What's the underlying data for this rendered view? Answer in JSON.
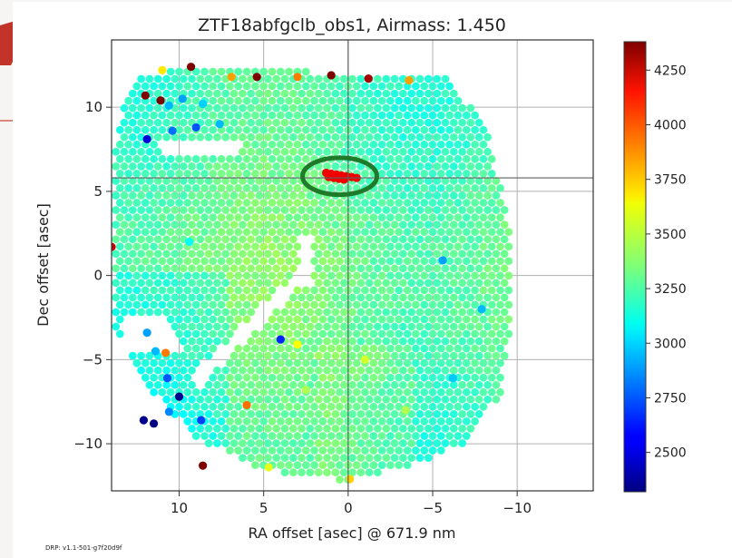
{
  "colors": {
    "slide_accent": "#c2342a",
    "slide_rule": "#d98a7c",
    "axes": "#333333",
    "grid": "#b0b0b0",
    "crosshair": "#5f5f5f",
    "highlight_ring": "#1f7a2a",
    "figure_bg": "#ffffff"
  },
  "footer": {
    "drp_version": "DRP: v1.1-501-g7f20d9f"
  },
  "chart_data": {
    "type": "scatter",
    "title": "ZTF18abfgclb_obs1, Airmass: 1.450",
    "xlabel": "RA offset [asec] @  671.9 nm",
    "ylabel": "Dec offset [asec]",
    "x_reversed": true,
    "xlim": [
      14,
      -14.5
    ],
    "ylim": [
      -12.8,
      14
    ],
    "xticks": [
      10,
      5,
      0,
      -5,
      -10
    ],
    "yticks": [
      10,
      5,
      0,
      -5,
      -10
    ],
    "xtick_labels": [
      "10",
      "5",
      "0",
      "−5",
      "−10"
    ],
    "ytick_labels": [
      "10",
      "5",
      "0",
      "−5",
      "−10"
    ],
    "grid": true,
    "crosshair": {
      "x": 0,
      "y": 5.8
    },
    "colorbar": {
      "colormap": "jet",
      "min": 2320,
      "max": 4380,
      "ticks": [
        2500,
        2750,
        3000,
        3250,
        3500,
        3750,
        4000,
        4250
      ],
      "tick_labels": [
        "2500",
        "2750",
        "3000",
        "3250",
        "3500",
        "3750",
        "4000",
        "4250"
      ]
    },
    "footprint": {
      "description_values": "hexagonal grid of spaxels, spacing ~0.5 asec",
      "spacing": 0.5,
      "outline_vertices": [
        [
          12.5,
          12.0
        ],
        [
          7,
          12.4
        ],
        [
          0,
          12.0
        ],
        [
          -6,
          11.7
        ],
        [
          -8.3,
          8.5
        ],
        [
          -9.7,
          2
        ],
        [
          -9.7,
          -3
        ],
        [
          -9,
          -7
        ],
        [
          -7,
          -10
        ],
        [
          -4,
          -11.2
        ],
        [
          0,
          -12.2
        ],
        [
          5,
          -11.6
        ],
        [
          9,
          -9.6
        ],
        [
          12.5,
          -6
        ],
        [
          13.8,
          -3
        ],
        [
          13.8,
          8
        ],
        [
          13,
          11
        ]
      ],
      "gaps": [
        {
          "polygon": [
            [
              11.2,
              8.2
            ],
            [
              6.5,
              8.2
            ],
            [
              6.5,
              7.2
            ],
            [
              11.2,
              7.2
            ]
          ]
        },
        {
          "polygon": [
            [
              13.5,
              -2.5
            ],
            [
              11,
              -2.5
            ],
            [
              9.5,
              -4.5
            ],
            [
              13.5,
              -4.5
            ]
          ]
        },
        {
          "polygon": [
            [
              2.8,
              2.2
            ],
            [
              2.1,
              2.2
            ],
            [
              2.1,
              -0.6
            ],
            [
              2.8,
              -0.6
            ]
          ]
        },
        {
          "polygon": [
            [
              2.6,
              0.6
            ],
            [
              2.0,
              0.2
            ],
            [
              8.8,
              -6.6
            ],
            [
              9.4,
              -6.0
            ]
          ]
        }
      ],
      "base_value": 3280
    },
    "highlight": {
      "label": "",
      "center": [
        0.5,
        5.9
      ],
      "rx": 2.2,
      "ry": 1.1,
      "points": [
        [
          1.3,
          6.1
        ],
        [
          1.0,
          6.05
        ],
        [
          0.7,
          6.0
        ],
        [
          0.4,
          5.95
        ],
        [
          0.1,
          5.9
        ],
        [
          -0.2,
          5.85
        ],
        [
          -0.5,
          5.8
        ],
        [
          1.15,
          5.85
        ],
        [
          0.85,
          5.8
        ],
        [
          0.55,
          5.75
        ],
        [
          0.25,
          5.7
        ]
      ],
      "value": 4150
    },
    "outliers": [
      {
        "x": 11.0,
        "y": 12.2,
        "v": 3650
      },
      {
        "x": 9.3,
        "y": 12.4,
        "v": 4380
      },
      {
        "x": 6.9,
        "y": 11.8,
        "v": 3800
      },
      {
        "x": 5.4,
        "y": 11.8,
        "v": 4380
      },
      {
        "x": 3.0,
        "y": 11.8,
        "v": 3870
      },
      {
        "x": 1.0,
        "y": 11.9,
        "v": 4380
      },
      {
        "x": -1.2,
        "y": 11.7,
        "v": 4300
      },
      {
        "x": -3.6,
        "y": 11.6,
        "v": 3800
      },
      {
        "x": 12.0,
        "y": 10.7,
        "v": 4380
      },
      {
        "x": 11.1,
        "y": 10.4,
        "v": 4380
      },
      {
        "x": 10.6,
        "y": 10.1,
        "v": 2950
      },
      {
        "x": 9.8,
        "y": 10.5,
        "v": 2900
      },
      {
        "x": 8.6,
        "y": 10.2,
        "v": 3000
      },
      {
        "x": 11.9,
        "y": 8.1,
        "v": 2500
      },
      {
        "x": 10.4,
        "y": 8.6,
        "v": 2800
      },
      {
        "x": 9.0,
        "y": 8.8,
        "v": 2750
      },
      {
        "x": 7.6,
        "y": 9.0,
        "v": 2950
      },
      {
        "x": 14.0,
        "y": 1.7,
        "v": 4250
      },
      {
        "x": 11.9,
        "y": -3.4,
        "v": 2900
      },
      {
        "x": 11.4,
        "y": -4.5,
        "v": 2950
      },
      {
        "x": 10.8,
        "y": -4.6,
        "v": 3880
      },
      {
        "x": 10.7,
        "y": -6.1,
        "v": 2750
      },
      {
        "x": 10.0,
        "y": -7.2,
        "v": 2350
      },
      {
        "x": 10.6,
        "y": -8.1,
        "v": 2850
      },
      {
        "x": 12.1,
        "y": -8.6,
        "v": 2350
      },
      {
        "x": 11.5,
        "y": -8.8,
        "v": 2320
      },
      {
        "x": 8.7,
        "y": -8.6,
        "v": 2700
      },
      {
        "x": 8.6,
        "y": -11.3,
        "v": 4380
      },
      {
        "x": 6.0,
        "y": -7.7,
        "v": 3900
      },
      {
        "x": 4.0,
        "y": -3.8,
        "v": 2650
      },
      {
        "x": 3.0,
        "y": -4.1,
        "v": 3600
      },
      {
        "x": 9.4,
        "y": 2.0,
        "v": 3100
      },
      {
        "x": -5.6,
        "y": 0.9,
        "v": 2900
      },
      {
        "x": -7.9,
        "y": -2.0,
        "v": 2950
      },
      {
        "x": -6.2,
        "y": -6.1,
        "v": 2980
      },
      {
        "x": -3.4,
        "y": -8.0,
        "v": 3450
      },
      {
        "x": -0.1,
        "y": -12.1,
        "v": 3700
      },
      {
        "x": 4.7,
        "y": -11.4,
        "v": 3550
      },
      {
        "x": -1.0,
        "y": -5.0,
        "v": 3520
      },
      {
        "x": 2.5,
        "y": -6.8,
        "v": 3450
      }
    ]
  }
}
